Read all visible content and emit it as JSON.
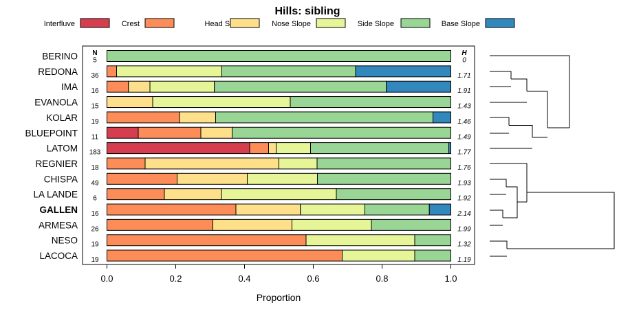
{
  "chart_data": {
    "type": "bar",
    "orientation": "horizontal",
    "stacked": true,
    "title": "Hills: sibling",
    "xlabel": "Proportion",
    "ylabel": "",
    "xlim": [
      0,
      1
    ],
    "xticks": [
      "0.0",
      "0.2",
      "0.4",
      "0.6",
      "0.8",
      "1.0"
    ],
    "n_header": "N",
    "h_header": "H",
    "highlight": "GALLEN",
    "legend": [
      {
        "name": "Interfluve",
        "color": "#D53E4F"
      },
      {
        "name": "Crest",
        "color": "#FC8D59"
      },
      {
        "name": "Head Slope",
        "color": "#FEE08B"
      },
      {
        "name": "Nose Slope",
        "color": "#E6F598"
      },
      {
        "name": "Side Slope",
        "color": "#99D594"
      },
      {
        "name": "Base Slope",
        "color": "#3288BD"
      }
    ],
    "rows": [
      {
        "label": "BERINO",
        "n": "5",
        "h": "0",
        "values": [
          0,
          0,
          0,
          0,
          1.0,
          0
        ]
      },
      {
        "label": "REDONA",
        "n": "36",
        "h": "1.71",
        "values": [
          0,
          0.028,
          0,
          0.306,
          0.389,
          0.277
        ]
      },
      {
        "label": "IMA",
        "n": "16",
        "h": "1.91",
        "values": [
          0,
          0.0625,
          0.0625,
          0.1875,
          0.5,
          0.1875
        ]
      },
      {
        "label": "EVANOLA",
        "n": "15",
        "h": "1.43",
        "values": [
          0,
          0,
          0.133,
          0.4,
          0.467,
          0
        ]
      },
      {
        "label": "KOLAR",
        "n": "19",
        "h": "1.46",
        "values": [
          0,
          0.211,
          0.105,
          0,
          0.632,
          0.052
        ]
      },
      {
        "label": "BLUEPOINT",
        "n": "11",
        "h": "1.49",
        "values": [
          0.091,
          0.182,
          0.091,
          0,
          0.636,
          0
        ]
      },
      {
        "label": "LATOM",
        "n": "183",
        "h": "1.77",
        "values": [
          0.415,
          0.055,
          0.022,
          0.1,
          0.402,
          0.006
        ]
      },
      {
        "label": "REGNIER",
        "n": "18",
        "h": "1.76",
        "values": [
          0,
          0.111,
          0.389,
          0.111,
          0.389,
          0
        ]
      },
      {
        "label": "CHISPA",
        "n": "49",
        "h": "1.93",
        "values": [
          0,
          0.204,
          0.204,
          0.204,
          0.388,
          0
        ]
      },
      {
        "label": "LA LANDE",
        "n": "6",
        "h": "1.92",
        "values": [
          0,
          0.167,
          0.166,
          0.334,
          0.333,
          0
        ]
      },
      {
        "label": "GALLEN",
        "n": "16",
        "h": "2.14",
        "values": [
          0,
          0.375,
          0.1875,
          0.1875,
          0.1875,
          0.0625
        ]
      },
      {
        "label": "ARMESA",
        "n": "26",
        "h": "1.99",
        "values": [
          0,
          0.308,
          0.23,
          0.231,
          0.231,
          0
        ]
      },
      {
        "label": "NESO",
        "n": "19",
        "h": "1.32",
        "values": [
          0,
          0.579,
          0,
          0.316,
          0.105,
          0
        ]
      },
      {
        "label": "LACOCA",
        "n": "19",
        "h": "1.19",
        "values": [
          0,
          0.684,
          0,
          0.211,
          0.105,
          0
        ]
      }
    ]
  }
}
